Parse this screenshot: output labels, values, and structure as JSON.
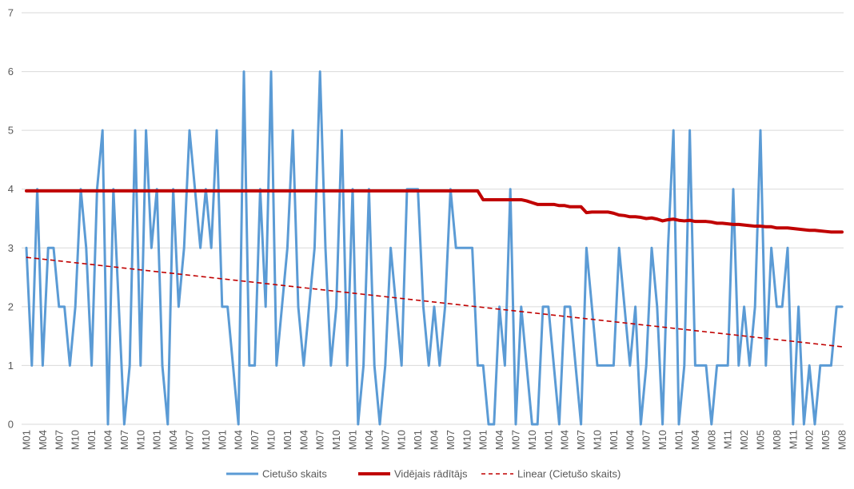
{
  "chart_data": {
    "type": "line",
    "ylim": [
      0,
      7
    ],
    "y_ticks": [
      0,
      1,
      2,
      3,
      4,
      5,
      6,
      7
    ],
    "grid": true,
    "legend": "bottom",
    "x_tick_labels": [
      "M01",
      "M04",
      "M07",
      "M10",
      "M01",
      "M04",
      "M07",
      "M10",
      "M01",
      "M04",
      "M07",
      "M10",
      "M01",
      "M04",
      "M07",
      "M10",
      "M01",
      "M04",
      "M07",
      "M10",
      "M01",
      "M04",
      "M07",
      "M10",
      "M01",
      "M04",
      "M07",
      "M10",
      "M01",
      "M04",
      "M07",
      "M10",
      "M01",
      "M04",
      "M07",
      "M10",
      "M01",
      "M04",
      "M07",
      "M10",
      "M01",
      "M04",
      "M08",
      "M11",
      "M02",
      "M05",
      "M08",
      "M11",
      "M02",
      "M05",
      "M08"
    ],
    "series": [
      {
        "name": "Cietušo skaits",
        "color": "#5b9bd5",
        "values": [
          3,
          1,
          4,
          1,
          3,
          3,
          2,
          2,
          1,
          2,
          4,
          3,
          1,
          4,
          5,
          0,
          4,
          2,
          0,
          1,
          5,
          1,
          5,
          3,
          4,
          1,
          0,
          4,
          2,
          3,
          5,
          4,
          3,
          4,
          3,
          5,
          2,
          2,
          1,
          0,
          6,
          1,
          1,
          4,
          2,
          6,
          1,
          2,
          3,
          5,
          2,
          1,
          2,
          3,
          6,
          3,
          1,
          2,
          5,
          1,
          4,
          0,
          1,
          4,
          1,
          0,
          1,
          3,
          2,
          1,
          4,
          4,
          4,
          2,
          1,
          2,
          1,
          2,
          4,
          3,
          3,
          3,
          3,
          1,
          1,
          0,
          0,
          2,
          1,
          4,
          0,
          2,
          1,
          0,
          0,
          2,
          2,
          1,
          0,
          2,
          2,
          1,
          0,
          3,
          2,
          1,
          1,
          1,
          1,
          3,
          2,
          1,
          2,
          0,
          1,
          3,
          2,
          0,
          3,
          5,
          0,
          1,
          5,
          1,
          1,
          1,
          0,
          1,
          1,
          1,
          4,
          1,
          2,
          1,
          2,
          5,
          1,
          3,
          2,
          2,
          3,
          0,
          2,
          0,
          1,
          0,
          1,
          1,
          1,
          2,
          2
        ]
      },
      {
        "name": "Vidējais rādītājs",
        "color": "#c00000",
        "values": [
          3.97,
          3.97,
          3.97,
          3.97,
          3.97,
          3.97,
          3.97,
          3.97,
          3.97,
          3.97,
          3.97,
          3.97,
          3.97,
          3.97,
          3.97,
          3.97,
          3.97,
          3.97,
          3.97,
          3.97,
          3.97,
          3.97,
          3.97,
          3.97,
          3.97,
          3.97,
          3.97,
          3.97,
          3.97,
          3.97,
          3.97,
          3.97,
          3.97,
          3.97,
          3.97,
          3.97,
          3.97,
          3.97,
          3.97,
          3.97,
          3.97,
          3.97,
          3.97,
          3.97,
          3.97,
          3.97,
          3.97,
          3.97,
          3.97,
          3.97,
          3.97,
          3.97,
          3.97,
          3.97,
          3.97,
          3.97,
          3.97,
          3.97,
          3.97,
          3.97,
          3.97,
          3.97,
          3.97,
          3.97,
          3.97,
          3.97,
          3.97,
          3.97,
          3.97,
          3.97,
          3.97,
          3.97,
          3.97,
          3.97,
          3.97,
          3.97,
          3.97,
          3.97,
          3.97,
          3.97,
          3.97,
          3.97,
          3.97,
          3.97,
          3.82,
          3.82,
          3.82,
          3.82,
          3.82,
          3.82,
          3.82,
          3.82,
          3.8,
          3.77,
          3.74,
          3.74,
          3.74,
          3.74,
          3.72,
          3.72,
          3.7,
          3.7,
          3.7,
          3.6,
          3.61,
          3.61,
          3.61,
          3.61,
          3.59,
          3.56,
          3.55,
          3.53,
          3.53,
          3.52,
          3.5,
          3.51,
          3.49,
          3.46,
          3.48,
          3.49,
          3.47,
          3.46,
          3.47,
          3.45,
          3.45,
          3.45,
          3.44,
          3.42,
          3.42,
          3.41,
          3.4,
          3.4,
          3.39,
          3.38,
          3.37,
          3.37,
          3.36,
          3.36,
          3.34,
          3.34,
          3.34,
          3.33,
          3.32,
          3.31,
          3.3,
          3.3,
          3.29,
          3.28,
          3.27,
          3.27,
          3.27
        ]
      }
    ],
    "trendline": {
      "name": "Linear (Cietušo skaits)",
      "type": "linear",
      "color": "#c00000",
      "style": "dashed"
    }
  }
}
